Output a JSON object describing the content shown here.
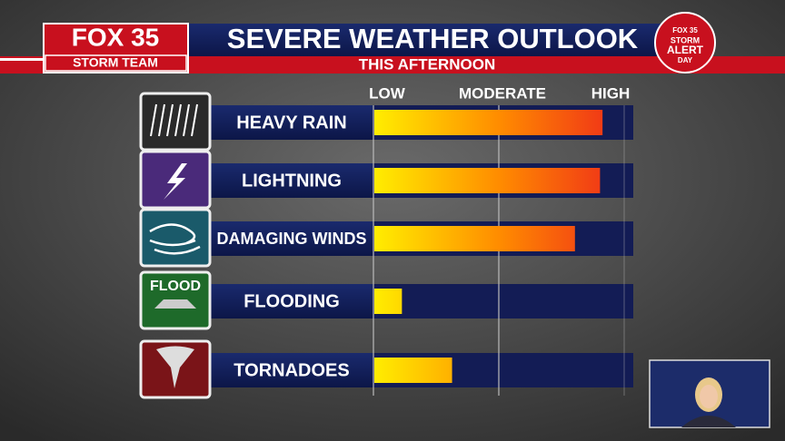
{
  "branding": {
    "logo": "FOX 35",
    "team": "STORM TEAM",
    "badge": [
      "FOX 35",
      "STORM",
      "ALERT",
      "DAY"
    ],
    "flood_icon": "FLOOD"
  },
  "chart_data": {
    "type": "hbar",
    "title": "SEVERE WEATHER OUTLOOK",
    "subtitle": "THIS AFTERNOON",
    "categories": [
      "HEAVY RAIN",
      "LIGHTNING",
      "DAMAGING WINDS",
      "FLOODING",
      "TORNADOES"
    ],
    "values": [
      91,
      90,
      80,
      11,
      31
    ],
    "colors": [
      "#ffee00",
      "#ff8c00",
      "#ee2a1a"
    ],
    "xlim": [
      0,
      100
    ],
    "xticks": [
      {
        "value": 0,
        "label": "LOW"
      },
      {
        "value": 50,
        "label": "MODERATE"
      },
      {
        "value": 100,
        "label": "HIGH"
      }
    ],
    "grid": true
  }
}
